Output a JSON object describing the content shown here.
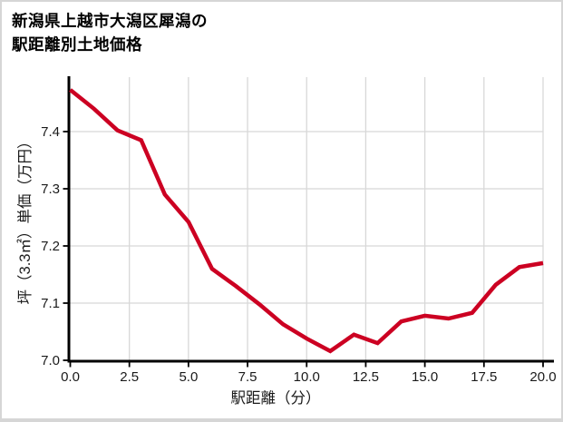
{
  "chart_data": {
    "type": "line",
    "title_lines": [
      "新潟県上越市大潟区犀潟の",
      "駅距離別土地価格"
    ],
    "title": "新潟県上越市大潟区犀潟の駅距離別土地価格",
    "xlabel": "駅距離（分）",
    "ylabel": "坪（3.3㎡）単価（万円）",
    "x": [
      0,
      1,
      2,
      3,
      4,
      5,
      6,
      7,
      8,
      9,
      10,
      11,
      12,
      13,
      14,
      15,
      16,
      17,
      18,
      19,
      20
    ],
    "y": [
      7.473,
      7.44,
      7.402,
      7.385,
      7.29,
      7.242,
      7.16,
      7.13,
      7.098,
      7.063,
      7.038,
      7.016,
      7.045,
      7.03,
      7.068,
      7.078,
      7.073,
      7.083,
      7.132,
      7.163,
      7.17
    ],
    "xticks": [
      0,
      2.5,
      5,
      7.5,
      10,
      12.5,
      15,
      17.5,
      20
    ],
    "xtick_labels": [
      "0.0",
      "2.5",
      "5.0",
      "7.5",
      "10.0",
      "12.5",
      "15.0",
      "17.5",
      "20.0"
    ],
    "yticks": [
      7.0,
      7.1,
      7.2,
      7.3,
      7.4
    ],
    "ytick_labels": [
      "7.0",
      "7.1",
      "7.2",
      "7.3",
      "7.4"
    ],
    "xlim": [
      0,
      20
    ],
    "ylim": [
      7.0,
      7.495
    ],
    "grid": true,
    "legend": null,
    "line_color": "#cc0022",
    "grid_color": "#d8d8d8",
    "axis_color": "#000000",
    "text_color": "#1a1a1a"
  }
}
